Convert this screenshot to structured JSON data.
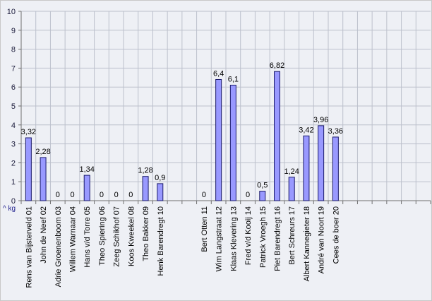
{
  "chart_data": {
    "type": "bar",
    "title": "",
    "xlabel": "",
    "ylabel": "",
    "unit_label": "^ kg",
    "ylim": [
      0,
      10
    ],
    "yticks": [
      0,
      1,
      2,
      3,
      4,
      5,
      6,
      7,
      8,
      9,
      10
    ],
    "grid": true,
    "categories": [
      "Rens van Bijsterveld 01",
      "John de Neef 02",
      "Adrie Groenenboom 03",
      "Willem Warnaar 04",
      "Hans v/d Torre 05",
      "Theo Spiering 06",
      "Zeeg Schikhof 07",
      "Koos Kweekel 08",
      "Theo Bakker 09",
      "Henk Barendregt 10",
      "",
      "",
      "Bert Otten 11",
      "Wim Langstraat 12",
      "Klaas Klevering 13",
      "Fred v/d Kooij 14",
      "Patrick Vroegh 15",
      "Piet Barendregt 16",
      "Bert Schreurs 17",
      "Albert Kannegieter 18",
      "André van Noort 19",
      "Cees de boer 20",
      "",
      "",
      "",
      "",
      "",
      ""
    ],
    "values": [
      3.32,
      2.28,
      0,
      0,
      1.34,
      0,
      0,
      0,
      1.28,
      0.9,
      null,
      null,
      0,
      6.4,
      6.1,
      0,
      0.5,
      6.82,
      1.24,
      3.42,
      3.96,
      3.36,
      null,
      null,
      null,
      null,
      null,
      null
    ],
    "data_labels": [
      "3,32",
      "2,28",
      "0",
      "0",
      "1,34",
      "0",
      "0",
      "0",
      "1,28",
      "0,9",
      "",
      "",
      "0",
      "6,4",
      "6,1",
      "0",
      "0,5",
      "6,82",
      "1,24",
      "3,42",
      "3,96",
      "3,36",
      "",
      "",
      "",
      "",
      "",
      ""
    ],
    "colors": {
      "bar_fill": "#9999ff",
      "bar_stroke": "#1a1a6a",
      "plot_bg": "#eef0f5",
      "grid": "#bcc0cc",
      "axis": "#707070"
    }
  }
}
